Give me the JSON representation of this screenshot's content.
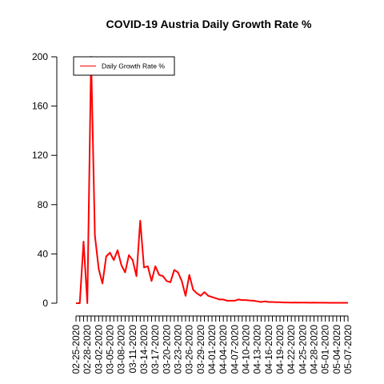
{
  "chart_data": {
    "type": "line",
    "title": "COVID-19 Austria Daily Growth Rate %",
    "xlabel": "",
    "ylabel": "",
    "ylim": [
      0,
      200
    ],
    "y_ticks": [
      0,
      40,
      80,
      120,
      160,
      200
    ],
    "x": [
      "02-25-2020",
      "02-26-2020",
      "02-27-2020",
      "02-28-2020",
      "02-29-2020",
      "03-01-2020",
      "03-02-2020",
      "03-03-2020",
      "03-04-2020",
      "03-05-2020",
      "03-06-2020",
      "03-07-2020",
      "03-08-2020",
      "03-09-2020",
      "03-10-2020",
      "03-11-2020",
      "03-12-2020",
      "03-13-2020",
      "03-14-2020",
      "03-15-2020",
      "03-16-2020",
      "03-17-2020",
      "03-18-2020",
      "03-19-2020",
      "03-20-2020",
      "03-21-2020",
      "03-22-2020",
      "03-23-2020",
      "03-24-2020",
      "03-25-2020",
      "03-26-2020",
      "03-27-2020",
      "03-28-2020",
      "03-29-2020",
      "03-30-2020",
      "03-31-2020",
      "04-01-2020",
      "04-02-2020",
      "04-03-2020",
      "04-04-2020",
      "04-05-2020",
      "04-06-2020",
      "04-07-2020",
      "04-08-2020",
      "04-09-2020",
      "04-10-2020",
      "04-11-2020",
      "04-12-2020",
      "04-13-2020",
      "04-14-2020",
      "04-15-2020",
      "04-16-2020",
      "04-17-2020",
      "04-18-2020",
      "04-19-2020",
      "04-20-2020",
      "04-21-2020",
      "04-22-2020",
      "04-23-2020",
      "04-24-2020",
      "04-25-2020",
      "04-26-2020",
      "04-27-2020",
      "04-28-2020",
      "04-29-2020",
      "04-30-2020",
      "05-01-2020",
      "05-02-2020",
      "05-03-2020",
      "05-04-2020",
      "05-05-2020",
      "05-06-2020",
      "05-07-2020"
    ],
    "x_tick_labels": [
      "02-25-2020",
      "02-28-2020",
      "03-02-2020",
      "03-05-2020",
      "03-08-2020",
      "03-11-2020",
      "03-14-2020",
      "03-17-2020",
      "03-20-2020",
      "03-23-2020",
      "03-26-2020",
      "03-29-2020",
      "04-01-2020",
      "04-04-2020",
      "04-07-2020",
      "04-10-2020",
      "04-13-2020",
      "04-16-2020",
      "04-19-2020",
      "04-22-2020",
      "04-25-2020",
      "04-28-2020",
      "05-01-2020",
      "05-04-2020",
      "05-07-2020"
    ],
    "series": [
      {
        "name": "Daily Growth Rate %",
        "color": "#ff0000",
        "values": [
          0,
          0,
          50,
          0,
          200,
          55,
          28,
          16,
          38,
          41,
          35,
          43,
          31,
          25,
          39,
          35,
          22,
          67,
          29,
          30,
          18,
          30,
          23,
          22,
          18,
          17,
          27,
          25,
          18,
          6,
          23,
          11,
          8,
          6,
          9,
          6,
          5,
          4,
          3,
          3,
          2,
          2,
          2,
          3,
          2.5,
          2.5,
          2.2,
          2,
          1.5,
          1,
          1.5,
          1,
          1,
          0.8,
          0.8,
          0.6,
          0.6,
          0.5,
          0.6,
          0.5,
          0.5,
          0.5,
          0.4,
          0.5,
          0.4,
          0.4,
          0.4,
          0.3,
          0.3,
          0.3,
          0.3,
          0.3,
          0.3
        ]
      }
    ],
    "legend": {
      "position": "top-left",
      "entries": [
        "Daily Growth Rate %"
      ]
    },
    "grid": false
  }
}
